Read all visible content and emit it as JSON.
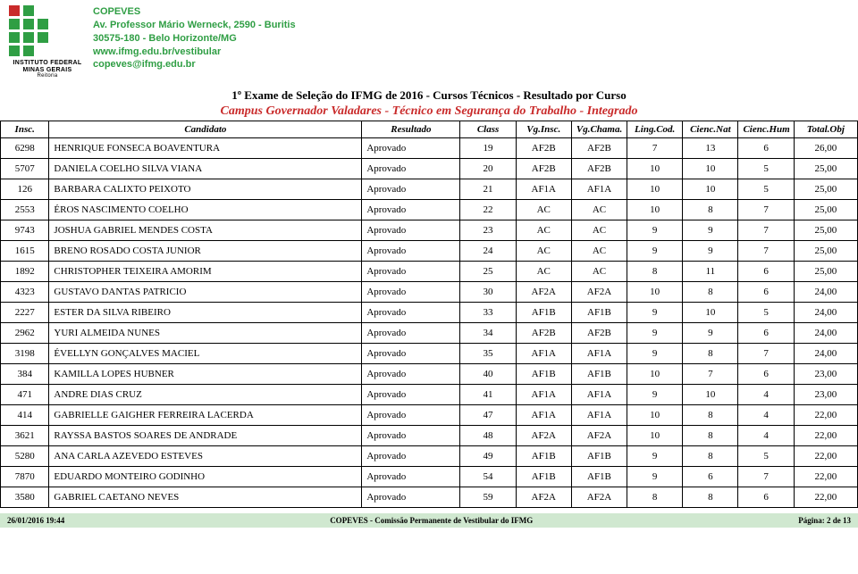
{
  "header": {
    "org_name": "COPEVES",
    "address1": "Av. Professor Mário Werneck, 2590 - Buritis",
    "address2": "30575-180 - Belo Horizonte/MG",
    "url": "www.ifmg.edu.br/vestibular",
    "email": "copeves@ifmg.edu.br",
    "logo_line1": "INSTITUTO FEDERAL",
    "logo_line2": "MINAS GERAIS",
    "logo_line3": "Reitoria"
  },
  "title1": "1º Exame de Seleção do IFMG de 2016 - Cursos Técnicos - Resultado por Curso",
  "title2": "Campus Governador Valadares - Técnico em Segurança do Trabalho - Integrado",
  "columns": [
    "Insc.",
    "Candidato",
    "Resultado",
    "Class",
    "Vg.Insc.",
    "Vg.Chama.",
    "Ling.Cod.",
    "Cienc.Nat",
    "Cienc.Hum",
    "Total.Obj"
  ],
  "rows": [
    [
      "6298",
      "HENRIQUE FONSECA BOAVENTURA",
      "Aprovado",
      "19",
      "AF2B",
      "AF2B",
      "7",
      "13",
      "6",
      "26,00"
    ],
    [
      "5707",
      "DANIELA COELHO SILVA VIANA",
      "Aprovado",
      "20",
      "AF2B",
      "AF2B",
      "10",
      "10",
      "5",
      "25,00"
    ],
    [
      "126",
      "BARBARA CALIXTO PEIXOTO",
      "Aprovado",
      "21",
      "AF1A",
      "AF1A",
      "10",
      "10",
      "5",
      "25,00"
    ],
    [
      "2553",
      "ÉROS NASCIMENTO COELHO",
      "Aprovado",
      "22",
      "AC",
      "AC",
      "10",
      "8",
      "7",
      "25,00"
    ],
    [
      "9743",
      "JOSHUA GABRIEL MENDES COSTA",
      "Aprovado",
      "23",
      "AC",
      "AC",
      "9",
      "9",
      "7",
      "25,00"
    ],
    [
      "1615",
      "BRENO ROSADO COSTA JUNIOR",
      "Aprovado",
      "24",
      "AC",
      "AC",
      "9",
      "9",
      "7",
      "25,00"
    ],
    [
      "1892",
      "CHRISTOPHER TEIXEIRA AMORIM",
      "Aprovado",
      "25",
      "AC",
      "AC",
      "8",
      "11",
      "6",
      "25,00"
    ],
    [
      "4323",
      "GUSTAVO DANTAS PATRICIO",
      "Aprovado",
      "30",
      "AF2A",
      "AF2A",
      "10",
      "8",
      "6",
      "24,00"
    ],
    [
      "2227",
      "ESTER DA SILVA RIBEIRO",
      "Aprovado",
      "33",
      "AF1B",
      "AF1B",
      "9",
      "10",
      "5",
      "24,00"
    ],
    [
      "2962",
      "YURI ALMEIDA NUNES",
      "Aprovado",
      "34",
      "AF2B",
      "AF2B",
      "9",
      "9",
      "6",
      "24,00"
    ],
    [
      "3198",
      "ÉVELLYN GONÇALVES MACIEL",
      "Aprovado",
      "35",
      "AF1A",
      "AF1A",
      "9",
      "8",
      "7",
      "24,00"
    ],
    [
      "384",
      "KAMILLA LOPES HUBNER",
      "Aprovado",
      "40",
      "AF1B",
      "AF1B",
      "10",
      "7",
      "6",
      "23,00"
    ],
    [
      "471",
      "ANDRE DIAS CRUZ",
      "Aprovado",
      "41",
      "AF1A",
      "AF1A",
      "9",
      "10",
      "4",
      "23,00"
    ],
    [
      "414",
      "GABRIELLE GAIGHER FERREIRA LACERDA",
      "Aprovado",
      "47",
      "AF1A",
      "AF1A",
      "10",
      "8",
      "4",
      "22,00"
    ],
    [
      "3621",
      "RAYSSA BASTOS SOARES DE ANDRADE",
      "Aprovado",
      "48",
      "AF2A",
      "AF2A",
      "10",
      "8",
      "4",
      "22,00"
    ],
    [
      "5280",
      "ANA CARLA AZEVEDO ESTEVES",
      "Aprovado",
      "49",
      "AF1B",
      "AF1B",
      "9",
      "8",
      "5",
      "22,00"
    ],
    [
      "7870",
      "EDUARDO MONTEIRO GODINHO",
      "Aprovado",
      "54",
      "AF1B",
      "AF1B",
      "9",
      "6",
      "7",
      "22,00"
    ],
    [
      "3580",
      "GABRIEL CAETANO NEVES",
      "Aprovado",
      "59",
      "AF2A",
      "AF2A",
      "8",
      "8",
      "6",
      "22,00"
    ]
  ],
  "footer": {
    "left": "26/01/2016 19:44",
    "center": "COPEVES - Comissão Permanente de Vestibular do IFMG",
    "right": "Página: 2 de 13"
  },
  "style": {
    "header_text_color": "#2f9e44",
    "title2_color": "#c92a2a",
    "footer_bg": "#d0e8d0",
    "border_color": "#000000",
    "column_align": [
      "c",
      "l",
      "l",
      "c",
      "c",
      "c",
      "c",
      "c",
      "c",
      "c"
    ]
  }
}
